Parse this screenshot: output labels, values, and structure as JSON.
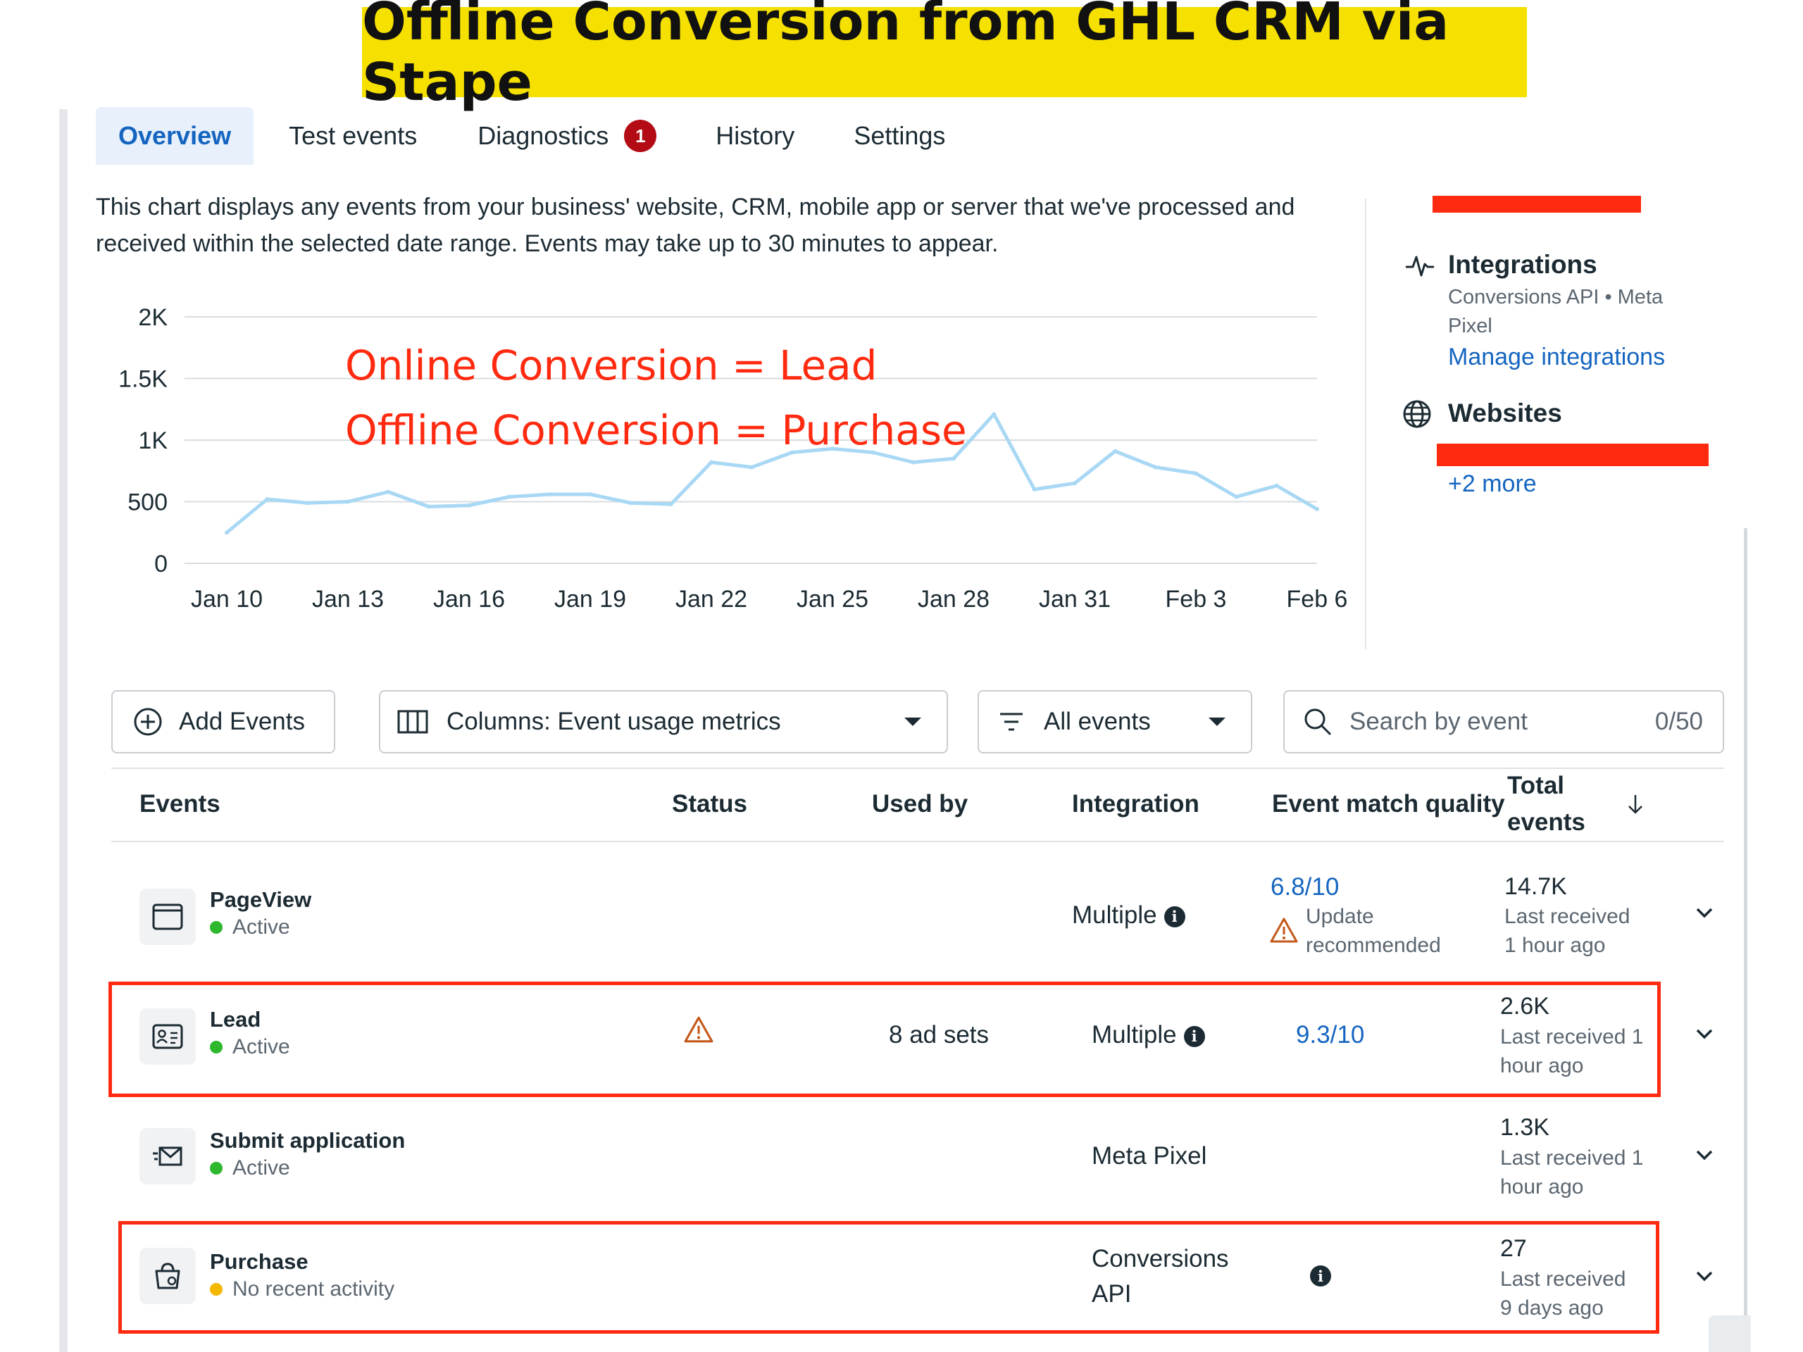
{
  "banner": {
    "title": "Offline Conversion from GHL CRM via Stape"
  },
  "tabs": [
    {
      "label": "Overview",
      "active": true
    },
    {
      "label": "Test events"
    },
    {
      "label": "Diagnostics",
      "badge": "1"
    },
    {
      "label": "History"
    },
    {
      "label": "Settings"
    }
  ],
  "description": "This chart displays any events from your business' website, CRM, mobile app or server that we've processed and received within the selected date range. Events may take up to 30 minutes to appear.",
  "annotations": {
    "line1": "Online Conversion  =  Lead",
    "line2": "Offline Conversion  =  Purchase"
  },
  "side": {
    "integrations_title": "Integrations",
    "integrations_sub_1": "Conversions API • Meta",
    "integrations_sub_2": "Pixel",
    "manage_link": "Manage integrations",
    "websites_title": "Websites",
    "more_link": "+2 more",
    "icons": [
      "activity-icon",
      "globe-icon"
    ]
  },
  "chart_data": {
    "type": "line",
    "title": "",
    "xlabel": "",
    "ylabel": "",
    "ylim": [
      0,
      2000
    ],
    "yticks": [
      "2K",
      "1.5K",
      "1K",
      "500",
      "0"
    ],
    "ytick_values": [
      2000,
      1500,
      1000,
      500,
      0
    ],
    "xticks": [
      "Jan 10",
      "Jan 13",
      "Jan 16",
      "Jan 19",
      "Jan 22",
      "Jan 25",
      "Jan 28",
      "Jan 31",
      "Feb 3",
      "Feb 6"
    ],
    "xtick_day_index": [
      0,
      3,
      6,
      9,
      12,
      15,
      18,
      21,
      24,
      27
    ],
    "grid": true,
    "line_color": "#a9d8f5",
    "series": [
      {
        "values": [
          250,
          520,
          490,
          500,
          580,
          460,
          470,
          540,
          560,
          560,
          490,
          480,
          820,
          780,
          900,
          930,
          900,
          820,
          850,
          1210,
          600,
          650,
          910,
          780,
          730,
          540,
          630,
          440
        ]
      }
    ]
  },
  "toolbar": {
    "add_events": "Add Events",
    "columns": "Columns: Event usage metrics",
    "filter": "All events",
    "search_placeholder": "Search by event",
    "search_count": "0/50"
  },
  "table": {
    "headers": {
      "events": "Events",
      "status": "Status",
      "used_by": "Used by",
      "integration": "Integration",
      "emq": "Event match quality",
      "total_1": "Total",
      "total_2": "events",
      "sort_icon": "arrow-down-icon"
    },
    "rows": [
      {
        "name": "PageView",
        "status": "Active",
        "status_color": "#2eb82e",
        "icon": "browser-window-icon",
        "used_by": "",
        "integration": "Multiple",
        "emq": "6.8/10",
        "emq_note_1": "Update",
        "emq_note_2": "recommended",
        "total": "14.7K",
        "received_1": "Last received",
        "received_2": "1 hour ago"
      },
      {
        "name": "Lead",
        "status": "Active",
        "status_color": "#2eb82e",
        "icon": "contact-card-icon",
        "status_warning": true,
        "used_by": "8 ad sets",
        "integration": "Multiple",
        "emq": "9.3/10",
        "total": "2.6K",
        "received_1": "Last received 1",
        "received_2": "hour ago"
      },
      {
        "name": "Submit application",
        "status": "Active",
        "status_color": "#2eb82e",
        "icon": "send-mail-icon",
        "used_by": "",
        "integration": "Meta Pixel",
        "total": "1.3K",
        "received_1": "Last received 1",
        "received_2": "hour ago"
      },
      {
        "name": "Purchase",
        "status": "No recent activity",
        "status_color": "#f5b800",
        "icon": "shopping-bag-icon",
        "used_by": "",
        "integration_1": "Conversions",
        "integration_2": "API",
        "total": "27",
        "received_1": "Last received",
        "received_2": "9 days ago"
      }
    ]
  }
}
